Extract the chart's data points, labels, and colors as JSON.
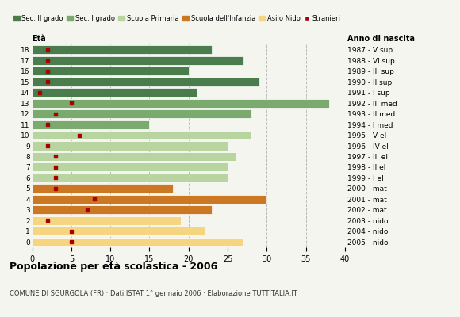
{
  "title": "Popolazione per età scolastica - 2006",
  "subtitle": "COMUNE DI SGURGOLA (FR) · Dati ISTAT 1° gennaio 2006 · Elaborazione TUTTITALIA.IT",
  "ylabel": "Età",
  "ylabel2": "Anno di nascita",
  "xlim": [
    0,
    40
  ],
  "ages": [
    18,
    17,
    16,
    15,
    14,
    13,
    12,
    11,
    10,
    9,
    8,
    7,
    6,
    5,
    4,
    3,
    2,
    1,
    0
  ],
  "years": [
    "1987 - V sup",
    "1988 - VI sup",
    "1989 - III sup",
    "1990 - II sup",
    "1991 - I sup",
    "1992 - III med",
    "1993 - II med",
    "1994 - I med",
    "1995 - V el",
    "1996 - IV el",
    "1997 - III el",
    "1998 - II el",
    "1999 - I el",
    "2000 - mat",
    "2001 - mat",
    "2002 - mat",
    "2003 - nido",
    "2004 - nido",
    "2005 - nido"
  ],
  "bar_values": [
    23,
    27,
    20,
    29,
    21,
    38,
    28,
    15,
    28,
    25,
    26,
    25,
    25,
    18,
    30,
    23,
    19,
    22,
    27
  ],
  "bar_colors": [
    "#4a7c4e",
    "#4a7c4e",
    "#4a7c4e",
    "#4a7c4e",
    "#4a7c4e",
    "#7aaa6e",
    "#7aaa6e",
    "#7aaa6e",
    "#b8d4a0",
    "#b8d4a0",
    "#b8d4a0",
    "#b8d4a0",
    "#b8d4a0",
    "#cc7722",
    "#cc7722",
    "#cc7722",
    "#f5d580",
    "#f5d580",
    "#f5d580"
  ],
  "stranieri_values": [
    2,
    2,
    2,
    2,
    1,
    5,
    3,
    2,
    6,
    2,
    3,
    3,
    3,
    3,
    8,
    7,
    2,
    5,
    5
  ],
  "legend_labels": [
    "Sec. II grado",
    "Sec. I grado",
    "Scuola Primaria",
    "Scuola dell'Infanzia",
    "Asilo Nido",
    "Stranieri"
  ],
  "legend_colors": [
    "#4a7c4e",
    "#7aaa6e",
    "#b8d4a0",
    "#cc7722",
    "#f5d580",
    "#aa0000"
  ],
  "bg_color": "#f5f5f0",
  "grid_color": "#bbbbbb"
}
